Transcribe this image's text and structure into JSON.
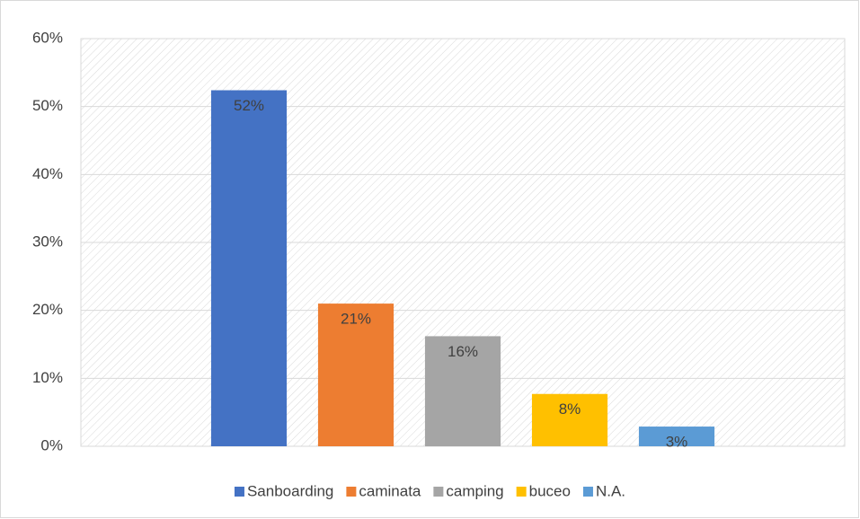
{
  "chart_data": {
    "type": "bar",
    "categories": [
      null
    ],
    "series": [
      {
        "name": "Sanboarding",
        "color": "#4472c4",
        "values": [
          52.4
        ],
        "value_labels": [
          "52%"
        ]
      },
      {
        "name": "caminata",
        "color": "#ed7d31",
        "values": [
          21.0
        ],
        "value_labels": [
          "21%"
        ]
      },
      {
        "name": "camping",
        "color": "#a5a5a5",
        "values": [
          16.2
        ],
        "value_labels": [
          "16%"
        ]
      },
      {
        "name": "buceo",
        "color": "#ffc000",
        "values": [
          7.7
        ],
        "value_labels": [
          "8%"
        ]
      },
      {
        "name": "N.A.",
        "color": "#5b9bd5",
        "values": [
          2.9
        ],
        "value_labels": [
          "3%"
        ]
      }
    ],
    "ylim": [
      0,
      60
    ],
    "yticks": [
      {
        "value": 0,
        "label": "0%"
      },
      {
        "value": 10,
        "label": "10%"
      },
      {
        "value": 20,
        "label": "20%"
      },
      {
        "value": 30,
        "label": "30%"
      },
      {
        "value": 40,
        "label": "40%"
      },
      {
        "value": 50,
        "label": "50%"
      },
      {
        "value": 60,
        "label": "60%"
      }
    ],
    "grid": true,
    "legend": "bottom"
  }
}
